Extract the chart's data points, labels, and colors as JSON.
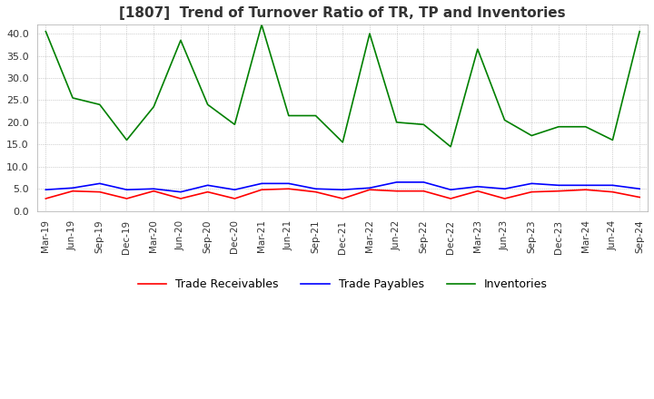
{
  "title": "[1807]  Trend of Turnover Ratio of TR, TP and Inventories",
  "x_labels": [
    "Mar-19",
    "Jun-19",
    "Sep-19",
    "Dec-19",
    "Mar-20",
    "Jun-20",
    "Sep-20",
    "Dec-20",
    "Mar-21",
    "Jun-21",
    "Sep-21",
    "Dec-21",
    "Mar-22",
    "Jun-22",
    "Sep-22",
    "Dec-22",
    "Mar-23",
    "Jun-23",
    "Sep-23",
    "Dec-23",
    "Mar-24",
    "Jun-24",
    "Sep-24"
  ],
  "trade_receivables": [
    2.8,
    4.5,
    4.3,
    2.8,
    4.5,
    2.8,
    4.3,
    2.8,
    4.8,
    5.0,
    4.3,
    2.8,
    4.8,
    4.5,
    4.5,
    2.8,
    4.5,
    2.8,
    4.3,
    4.5,
    4.8,
    4.3,
    3.1
  ],
  "trade_payables": [
    4.8,
    5.2,
    6.2,
    4.8,
    5.0,
    4.3,
    5.8,
    4.8,
    6.2,
    6.2,
    5.0,
    4.8,
    5.2,
    6.5,
    6.5,
    4.8,
    5.5,
    5.0,
    6.2,
    5.8,
    5.8,
    5.8,
    5.0
  ],
  "inventories": [
    40.5,
    25.5,
    24.0,
    16.0,
    23.5,
    38.5,
    24.0,
    19.5,
    42.0,
    21.5,
    21.5,
    15.5,
    40.0,
    20.0,
    19.5,
    14.5,
    36.5,
    20.5,
    17.0,
    19.0,
    19.0,
    16.0,
    40.5
  ],
  "tr_color": "#FF0000",
  "tp_color": "#0000FF",
  "inv_color": "#008000",
  "ylim": [
    0.0,
    42.0
  ],
  "yticks": [
    0.0,
    5.0,
    10.0,
    15.0,
    20.0,
    25.0,
    30.0,
    35.0,
    40.0
  ],
  "background_color": "#FFFFFF",
  "plot_bg_color": "#FFFFFF",
  "grid_color": "#AAAAAA",
  "title_fontsize": 11,
  "line_width": 1.2
}
